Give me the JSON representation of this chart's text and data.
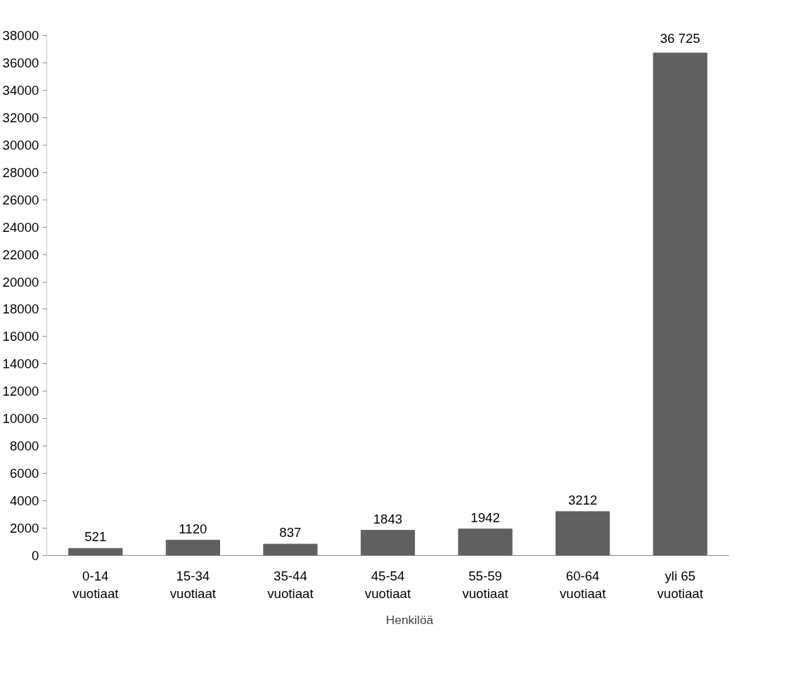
{
  "chart_data": {
    "type": "bar",
    "categories": [
      "0-14\nvuotiaat",
      "15-34\nvuotiaat",
      "35-44\nvuotiaat",
      "45-54\nvuotiaat",
      "55-59\nvuotiaat",
      "60-64\nvuotiaat",
      "yli 65\nvuotiaat"
    ],
    "series": [
      {
        "name": "Henkilöä",
        "color": "#606060",
        "values": [
          521,
          1120,
          837,
          1843,
          1942,
          3212,
          36725
        ],
        "value_labels": [
          "521",
          "1120",
          "837",
          "1843",
          "1942",
          "3212",
          "36 725"
        ]
      }
    ],
    "ylim": [
      0,
      38000
    ],
    "yticks": [
      0,
      2000,
      4000,
      6000,
      8000,
      10000,
      12000,
      14000,
      16000,
      18000,
      20000,
      22000,
      24000,
      26000,
      28000,
      30000,
      32000,
      34000,
      36000,
      38000
    ],
    "grid": false,
    "legend": "bottom"
  }
}
